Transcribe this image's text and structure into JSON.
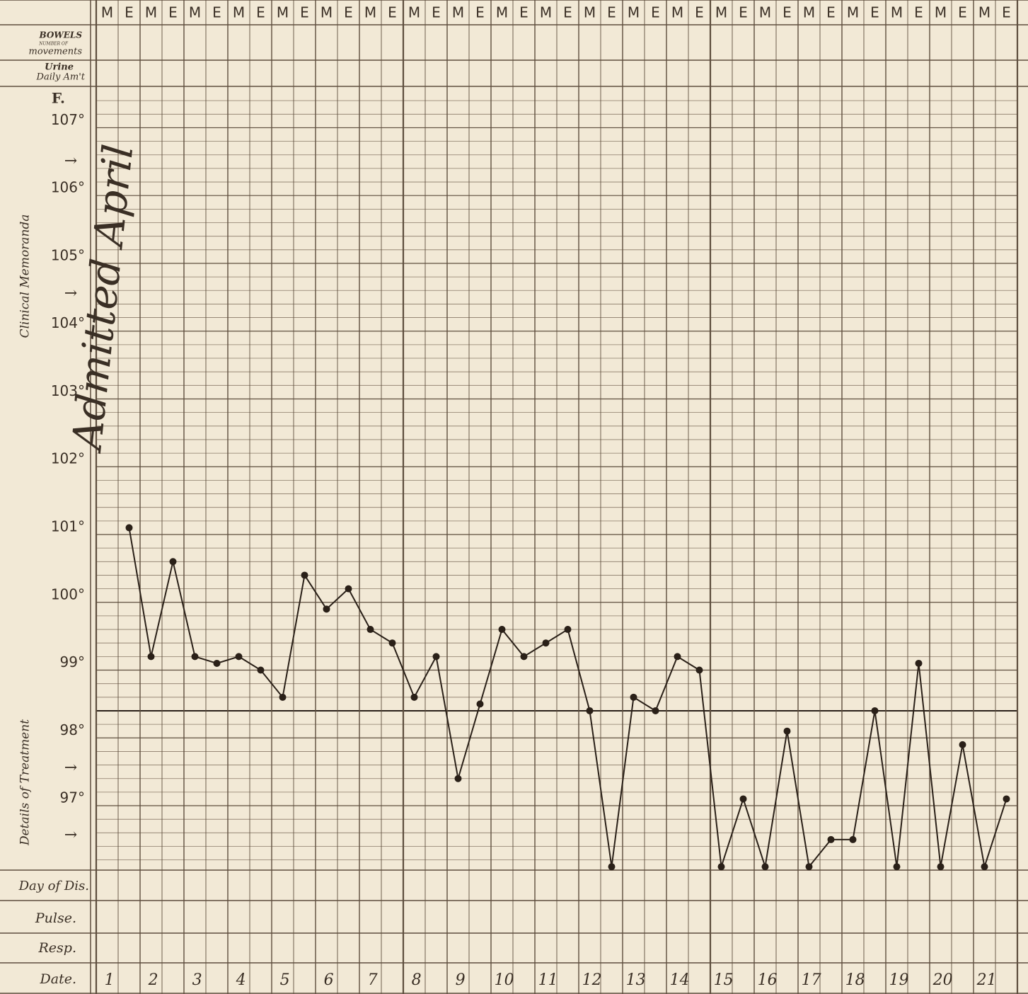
{
  "chart_data": {
    "type": "line",
    "labels": {
      "bowels": "BOWELS",
      "bowels_sub": "NUMBER OF",
      "bowels_sub2": "movements",
      "urine": "Urine",
      "urine_sub": "Daily Am't",
      "unit": "F.",
      "memo": "Clinical Memoranda",
      "treatment": "Details of Treatment",
      "day_of_dis": "Day of Dis.",
      "pulse": "Pulse.",
      "resp": "Resp.",
      "date": "Date."
    },
    "annotation": "Admitted April",
    "categories": [
      "M",
      "E",
      "M",
      "E",
      "M",
      "E",
      "M",
      "E",
      "M",
      "E",
      "M",
      "E",
      "M",
      "E",
      "M",
      "E",
      "M",
      "E",
      "M",
      "E",
      "M",
      "E",
      "M",
      "E",
      "M",
      "E",
      "M",
      "E",
      "M",
      "E",
      "M",
      "E",
      "M",
      "E",
      "M",
      "E",
      "M",
      "E",
      "M",
      "E",
      "M",
      "E"
    ],
    "values": [
      null,
      101.1,
      99.2,
      100.6,
      99.2,
      99.1,
      99.2,
      99.0,
      98.6,
      100.4,
      99.9,
      100.2,
      99.6,
      99.4,
      98.6,
      99.2,
      97.4,
      98.5,
      99.6,
      99.2,
      99.4,
      99.6,
      98.4,
      96.1,
      98.6,
      98.4,
      99.2,
      99.0,
      96.1,
      97.1,
      96.1,
      98.1,
      96.1,
      96.5,
      96.5,
      98.4,
      96.1,
      99.1,
      96.1,
      97.9,
      96.1,
      97.1
    ],
    "color": "#2a2018",
    "normal_line": 98.4,
    "dates": [
      1,
      2,
      3,
      4,
      5,
      6,
      7,
      8,
      9,
      10,
      11,
      12,
      13,
      14,
      15,
      16,
      17,
      18,
      19,
      20,
      21
    ],
    "ylim": [
      96.05,
      107.6
    ],
    "yticks": [
      {
        "value": 97,
        "label": "97°"
      },
      {
        "value": 98,
        "label": "98°"
      },
      {
        "value": 99,
        "label": "99°"
      },
      {
        "value": 100,
        "label": "100°"
      },
      {
        "value": 101,
        "label": "101°"
      },
      {
        "value": 102,
        "label": "102°"
      },
      {
        "value": 103,
        "label": "103°"
      },
      {
        "value": 104,
        "label": "104°"
      },
      {
        "value": 105,
        "label": "105°"
      },
      {
        "value": 106,
        "label": "106°"
      },
      {
        "value": 107,
        "label": "107°"
      }
    ],
    "grid": true
  }
}
